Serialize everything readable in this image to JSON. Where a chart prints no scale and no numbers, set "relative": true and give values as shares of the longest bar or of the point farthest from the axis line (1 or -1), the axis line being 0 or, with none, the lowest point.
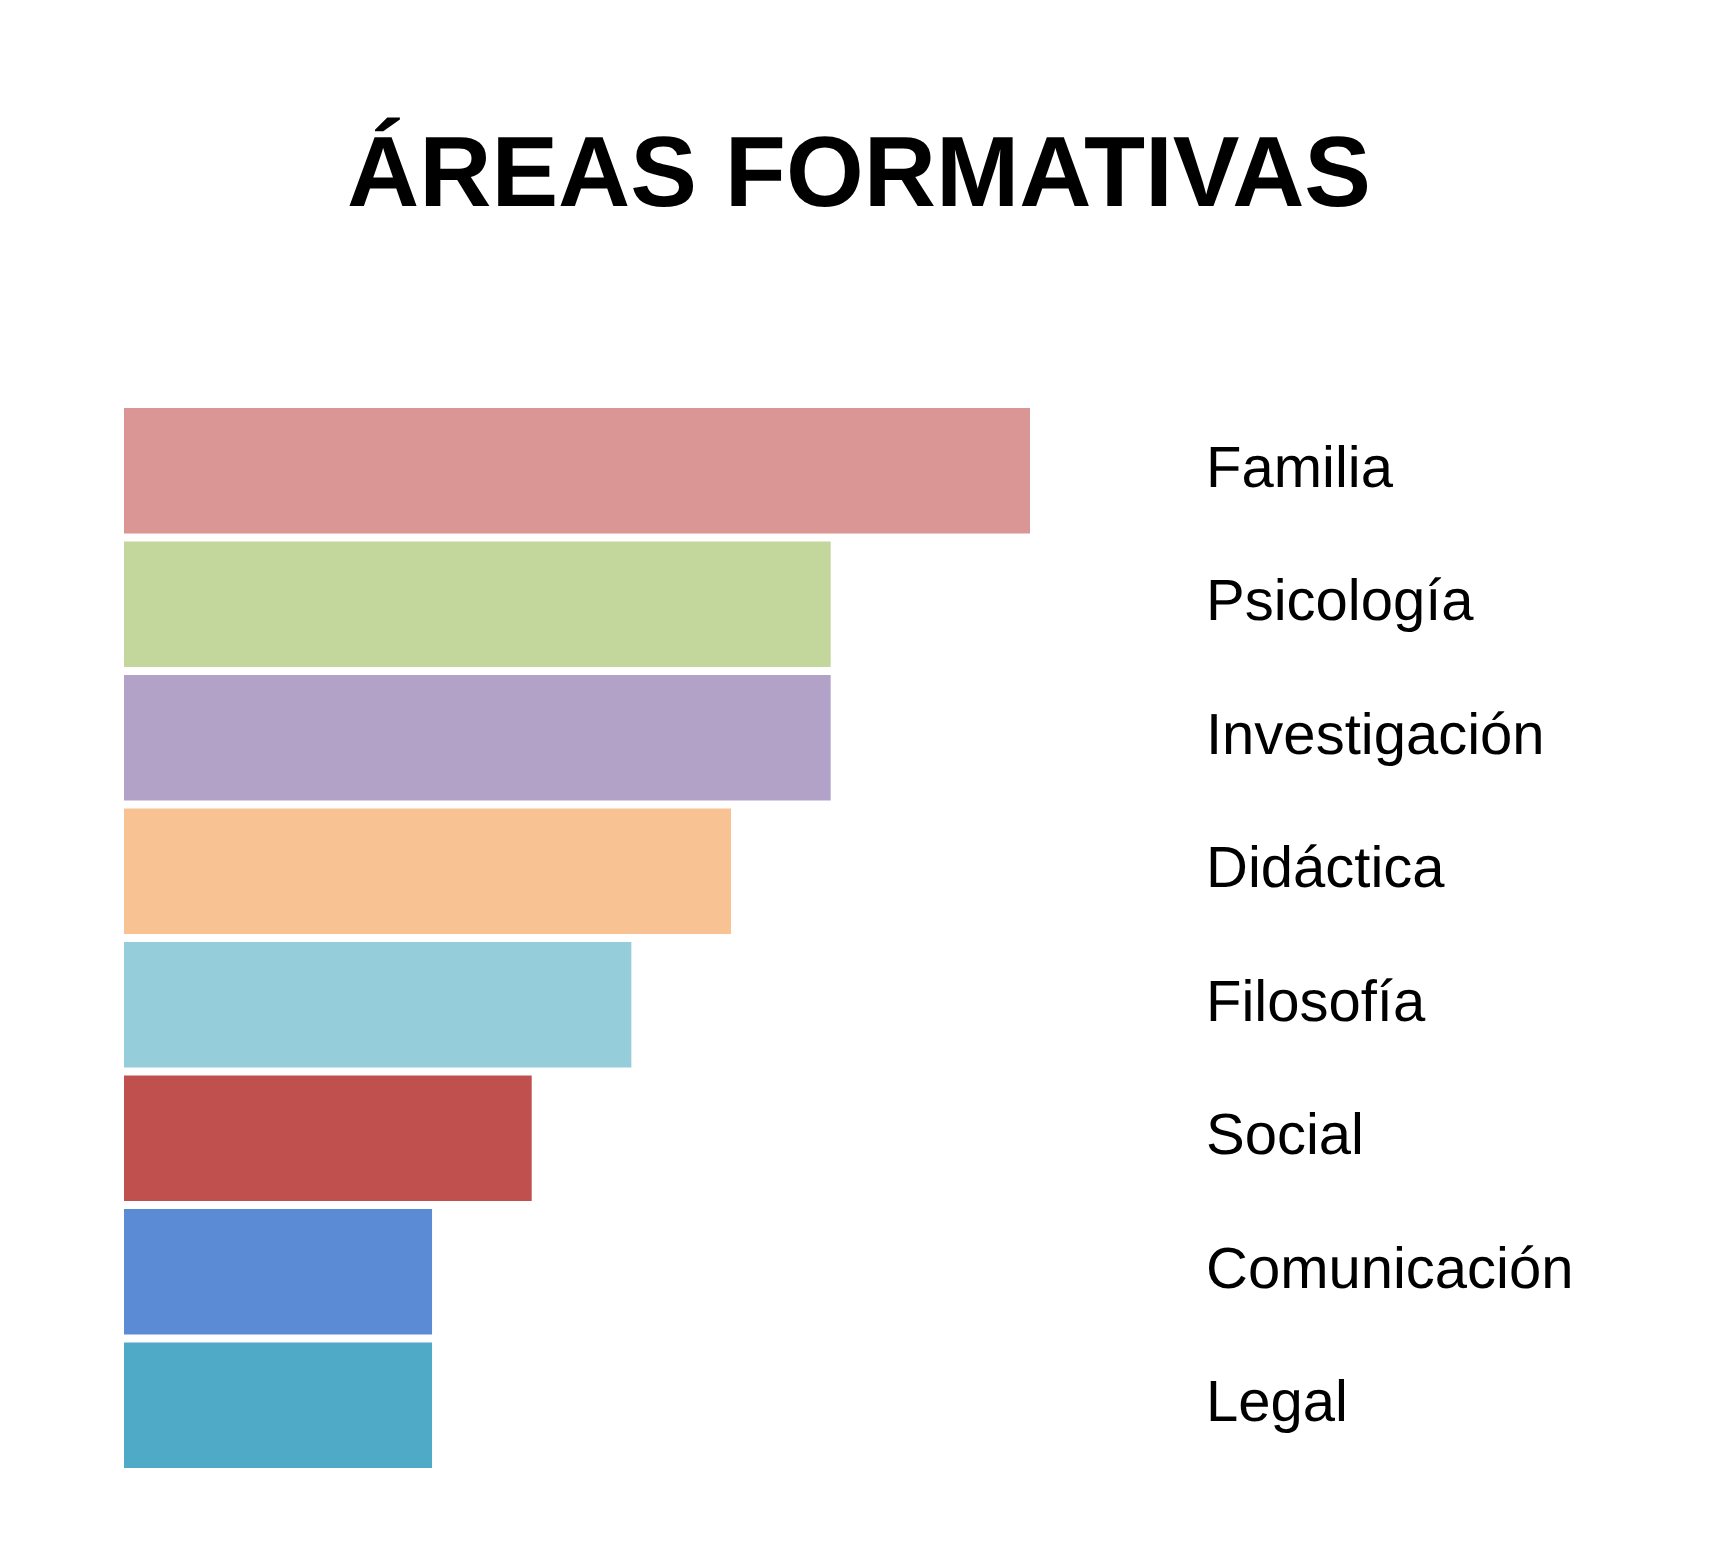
{
  "chart_data": {
    "type": "bar",
    "orientation": "horizontal",
    "relative": true,
    "title": "ÁREAS FORMATIVAS",
    "categories": [
      "Familia",
      "Psicología",
      "Investigación",
      "Didáctica",
      "Filosofía",
      "Social",
      "Comunicación",
      "Legal"
    ],
    "values": [
      1,
      0.78,
      0.78,
      0.67,
      0.56,
      0.45,
      0.34,
      0.34
    ],
    "colors": [
      "#d99694",
      "#c3d69b",
      "#b3a2c7",
      "#f8c293",
      "#96cddb",
      "#c0504d",
      "#5b8bd5",
      "#4eaac6"
    ]
  }
}
